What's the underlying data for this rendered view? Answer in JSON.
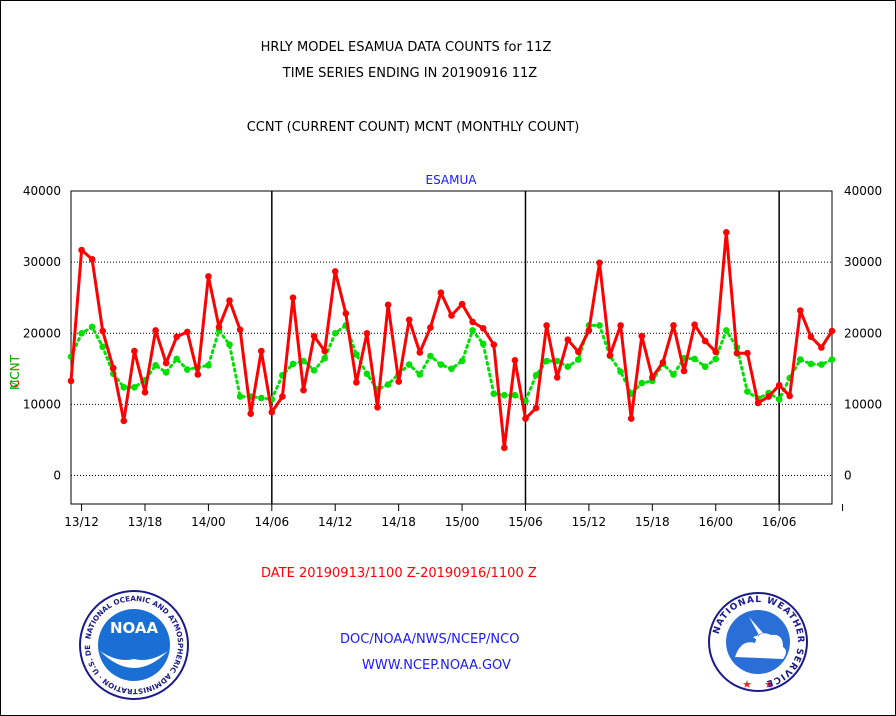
{
  "chart_data": {
    "type": "line",
    "title_lines": [
      "HRLY MODEL ESAMUA DATA COUNTS for 11Z",
      "TIME SERIES ENDING IN 20190916 11Z",
      "CCNT (CURRENT COUNT) MCNT (MONTHLY COUNT)"
    ],
    "subtitle": "ESAMUA",
    "ylabel_ccnt": "CCNT",
    "ylabel_mcnt": "MCNT",
    "xlabel": "DATE 20190913/1100 Z-20190916/1100 Z",
    "ylim": [
      -4000,
      40000
    ],
    "y_ticks": [
      0,
      10000,
      20000,
      30000,
      40000
    ],
    "y_tick_labels": [
      "0",
      "10000",
      "20000",
      "30000",
      "40000"
    ],
    "x_ticks": [
      1,
      7,
      13,
      19,
      25,
      31,
      37,
      43,
      49,
      55,
      61,
      67,
      73
    ],
    "x_tick_labels": [
      "13/12",
      "13/18",
      "14/00",
      "14/06",
      "14/12",
      "14/18",
      "15/00",
      "15/06",
      "15/12",
      "15/18",
      "16/00",
      "16/06"
    ],
    "day_boundaries": [
      19,
      43,
      67
    ],
    "x_range": [
      0,
      72
    ],
    "series": [
      {
        "name": "CCNT",
        "color": "#ff0000",
        "style": "solid",
        "values": [
          13300,
          31700,
          30400,
          20300,
          15100,
          7700,
          17500,
          11700,
          20400,
          15800,
          19500,
          20200,
          14200,
          28000,
          20900,
          24600,
          20500,
          8700,
          17500,
          8900,
          11100,
          25000,
          12000,
          19600,
          17500,
          28700,
          22800,
          13100,
          20000,
          9600,
          24000,
          13200,
          21900,
          17300,
          20800,
          25700,
          22500,
          24100,
          21600,
          20700,
          18400,
          3900,
          16200,
          8000,
          9500,
          21100,
          13800,
          19100,
          17400,
          20400,
          29900,
          16900,
          21100,
          8000,
          19600,
          13800,
          15900,
          21100,
          14700,
          21200,
          18900,
          17400,
          34200,
          17200,
          17200,
          10200,
          11100,
          12700,
          11200,
          23200,
          19500,
          18000,
          20300
        ]
      },
      {
        "name": "MCNT",
        "color": "#00e000",
        "style": "dotted",
        "values": [
          16700,
          20000,
          20900,
          18100,
          14300,
          12400,
          12400,
          13400,
          15500,
          14500,
          16400,
          14900,
          15200,
          15500,
          20400,
          18400,
          11100,
          11100,
          10900,
          10700,
          14100,
          15700,
          16100,
          14800,
          16500,
          20000,
          21100,
          17000,
          14300,
          12100,
          12800,
          14300,
          15600,
          14200,
          16800,
          15600,
          15000,
          16100,
          20400,
          18500,
          11500,
          11300,
          11300,
          10500,
          14100,
          16100,
          16100,
          15300,
          16300,
          21100,
          21100,
          16800,
          14600,
          11500,
          13000,
          13300,
          15700,
          14200,
          16500,
          16400,
          15300,
          16400,
          20400,
          18000,
          11800,
          10800,
          11600,
          10700,
          13700,
          16300,
          15700,
          15600,
          16300
        ]
      }
    ]
  },
  "footer": {
    "line1": "DOC/NOAA/NWS/NCEP/NCO",
    "line2": "WWW.NCEP.NOAA.GOV"
  },
  "logos": {
    "noaa": {
      "center_text": "NOAA",
      "ring_text": "NATIONAL OCEANIC AND ATMOSPHERIC ADMINISTRATION · U.S. DEPARTMENT OF COMMERCE",
      "ring_color": "#1a1a8c",
      "center_color": "#1a6fd4"
    },
    "nws": {
      "ring_text": "NATIONAL WEATHER SERVICE",
      "ring_color": "#1a1a8c",
      "inner_color": "#2a6fd8"
    }
  }
}
